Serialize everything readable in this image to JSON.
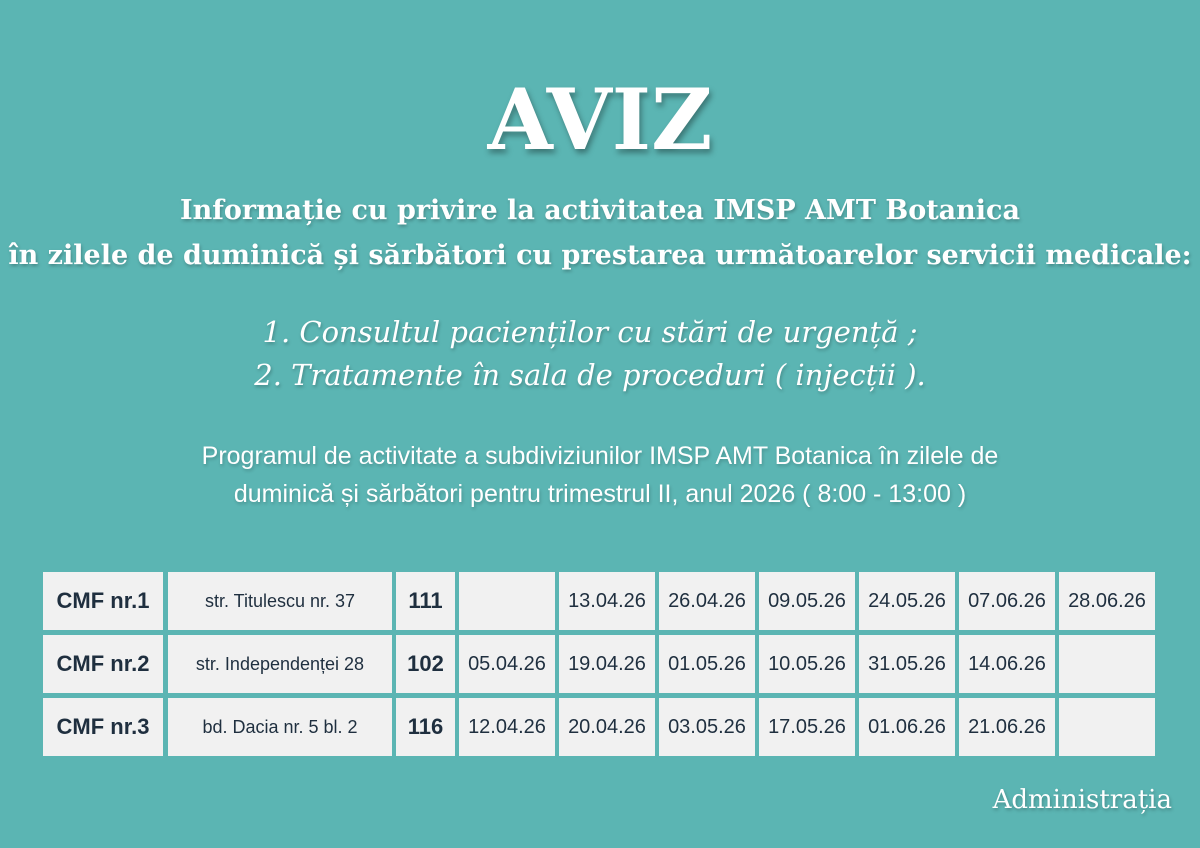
{
  "header": {
    "title": "AVIZ",
    "intro": [
      "Informație cu privire la activitatea IMSP AMT Botanica",
      "în zilele de duminică și sărbători cu prestarea următoarelor servicii medicale:"
    ],
    "services": [
      "1.  Consultul pacienților cu stări de urgență ;",
      "2.  Tratamente în sala de proceduri ( injecții )."
    ],
    "program": [
      "Programul de activitate a subdiviziunilor IMSP AMT Botanica în zilele de",
      "duminică și sărbători pentru trimestrul II, anul 2026  ( 8:00 - 13:00 )"
    ]
  },
  "table": {
    "rows": [
      [
        "CMF nr.1",
        "str. Titulescu nr. 37",
        "111",
        null,
        "13.04.26",
        "26.04.26",
        "09.05.26",
        "24.05.26",
        "07.06.26",
        "28.06.26"
      ],
      [
        "CMF nr.2",
        "str. Independenței 28",
        "102",
        "05.04.26",
        "19.04.26",
        "01.05.26",
        "10.05.26",
        "31.05.26",
        "14.06.26",
        null
      ],
      [
        "CMF nr.3",
        "bd. Dacia nr. 5 bl. 2",
        "116",
        "12.04.26",
        "20.04.26",
        "03.05.26",
        "17.05.26",
        "01.06.26",
        "21.06.26",
        null
      ]
    ]
  },
  "footer": {
    "signature": "Administrația"
  }
}
